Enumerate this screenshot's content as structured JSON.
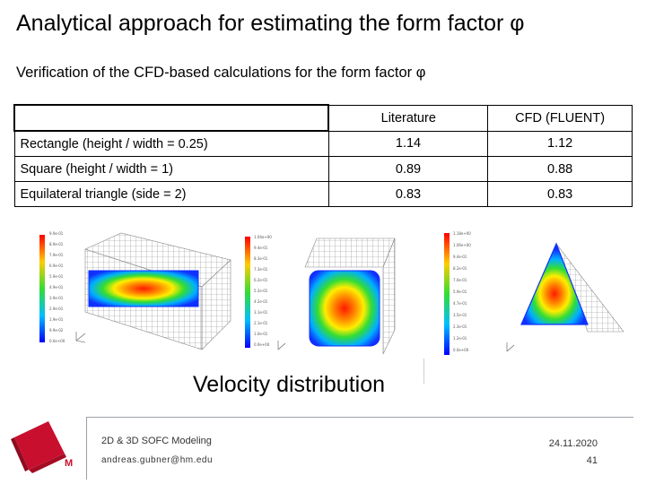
{
  "title": "Analytical approach for estimating the form factor φ",
  "subtitle": "Verification of the CFD-based calculations for the form factor φ",
  "table": {
    "headers": [
      "",
      "Literature",
      "CFD (FLUENT)"
    ],
    "rows": [
      {
        "label": "Rectangle (height / width = 0.25)",
        "literature": "1.14",
        "cfd": "1.12"
      },
      {
        "label": "Square (height / width = 1)",
        "literature": "0.89",
        "cfd": "0.88"
      },
      {
        "label": "Equilateral triangle (side = 2)",
        "literature": "0.83",
        "cfd": "0.83"
      }
    ]
  },
  "figure_caption": "Velocity distribution",
  "footer": {
    "course": "2D & 3D SOFC Modeling",
    "email": "andreas.gubner@hm.edu",
    "date": "24.11.2020",
    "page": "41"
  },
  "colors": {
    "logo_red": "#c8102e",
    "rule": "#9aa0a8"
  }
}
